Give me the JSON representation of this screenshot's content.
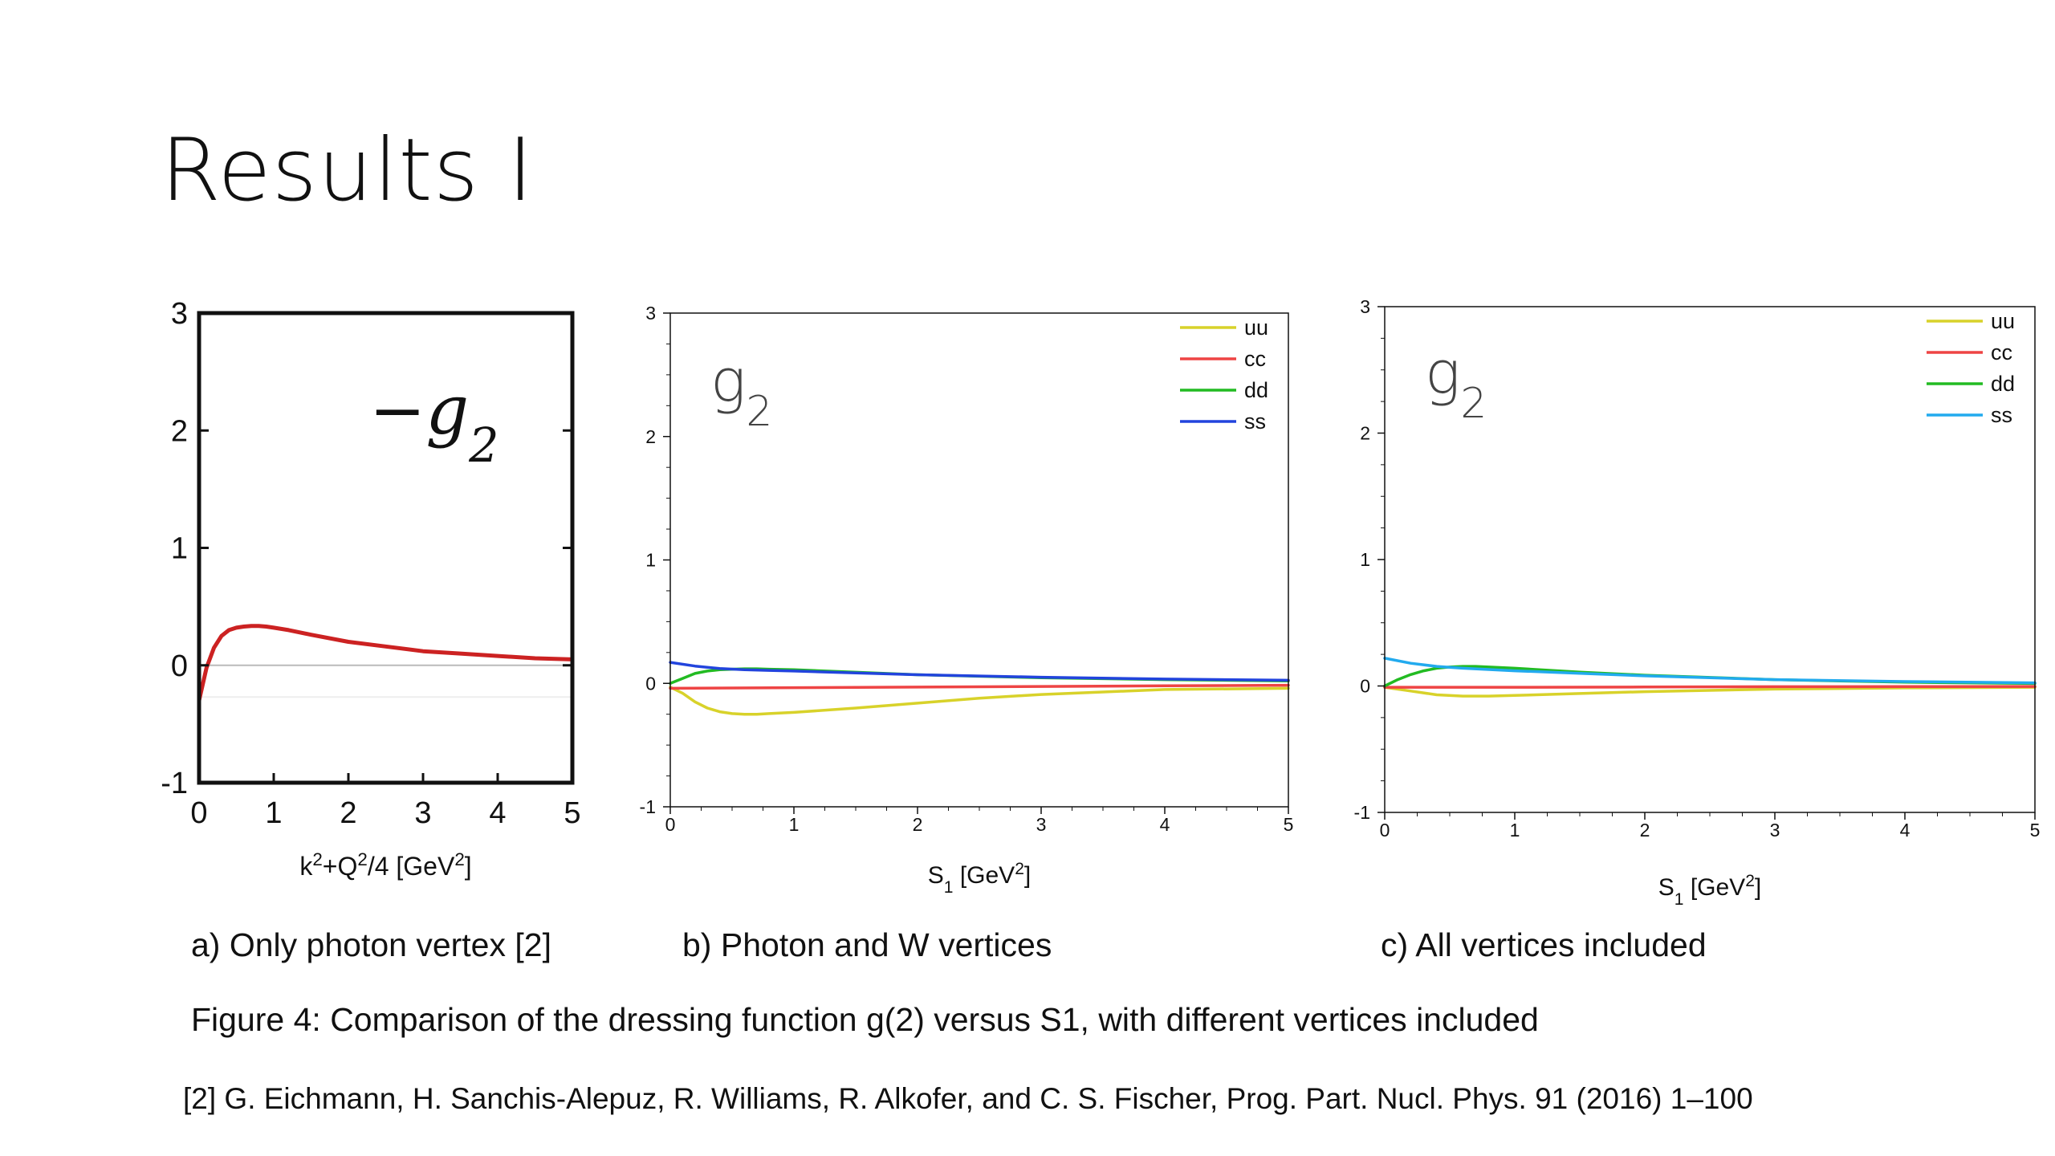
{
  "slide": {
    "title": "Results I",
    "captions": [
      "a) Only photon vertex [2]",
      "b) Photon and W vertices",
      "c) All vertices included"
    ],
    "figure_caption": "Figure 4: Comparison of the dressing function g(2) versus S1, with different vertices included",
    "reference": "[2] G. Eichmann, H. Sanchis-Alepuz, R. Williams, R. Alkofer, and C. S. Fischer, Prog. Part. Nucl. Phys. 91 (2016) 1–100"
  },
  "chart_data": [
    {
      "type": "line",
      "annotation": "−g₂",
      "xlabel": "k²+Q²/4 [GeV²]",
      "xlim": [
        0,
        5
      ],
      "ylim": [
        -1,
        3
      ],
      "xticks": [
        0,
        1,
        2,
        3,
        4,
        5
      ],
      "yticks": [
        -1,
        0,
        1,
        2,
        3
      ],
      "zero_line": true,
      "legend": null,
      "series": [
        {
          "color": "#cc2222",
          "x": [
            0,
            0.1,
            0.2,
            0.3,
            0.4,
            0.5,
            0.6,
            0.7,
            0.8,
            0.9,
            1.0,
            1.2,
            1.5,
            2.0,
            2.5,
            3.0,
            3.5,
            4.0,
            4.5,
            5.0
          ],
          "y": [
            -0.3,
            -0.02,
            0.15,
            0.25,
            0.3,
            0.32,
            0.33,
            0.335,
            0.335,
            0.33,
            0.32,
            0.3,
            0.26,
            0.2,
            0.16,
            0.12,
            0.1,
            0.08,
            0.06,
            0.05
          ]
        }
      ]
    },
    {
      "type": "line",
      "annotation": "g₂",
      "xlabel": "S₁ [GeV²]",
      "xlim": [
        0,
        5
      ],
      "ylim": [
        -1,
        3
      ],
      "xticks": [
        0,
        1,
        2,
        3,
        4,
        5
      ],
      "yticks": [
        -1,
        0,
        1,
        2,
        3
      ],
      "legend": "top-right",
      "series": [
        {
          "name": "uu",
          "color": "#d8d22a",
          "x": [
            0,
            0.1,
            0.2,
            0.3,
            0.4,
            0.5,
            0.6,
            0.7,
            0.8,
            1.0,
            1.5,
            2.0,
            2.5,
            3.0,
            3.5,
            4.0,
            5.0
          ],
          "y": [
            -0.03,
            -0.08,
            -0.15,
            -0.2,
            -0.23,
            -0.245,
            -0.25,
            -0.25,
            -0.245,
            -0.235,
            -0.2,
            -0.16,
            -0.12,
            -0.09,
            -0.07,
            -0.05,
            -0.04
          ]
        },
        {
          "name": "cc",
          "color": "#ee4444",
          "x": [
            0,
            1,
            2,
            3,
            4,
            5
          ],
          "y": [
            -0.04,
            -0.035,
            -0.03,
            -0.025,
            -0.02,
            -0.015
          ]
        },
        {
          "name": "dd",
          "color": "#22bb22",
          "x": [
            0,
            0.1,
            0.2,
            0.3,
            0.4,
            0.5,
            0.6,
            0.7,
            0.8,
            1.0,
            1.5,
            2.0,
            3.0,
            4.0,
            5.0
          ],
          "y": [
            0.0,
            0.04,
            0.08,
            0.1,
            0.11,
            0.115,
            0.118,
            0.118,
            0.115,
            0.11,
            0.09,
            0.07,
            0.045,
            0.03,
            0.02
          ]
        },
        {
          "name": "ss",
          "color": "#2244dd",
          "x": [
            0,
            0.2,
            0.4,
            0.6,
            0.8,
            1.0,
            1.5,
            2.0,
            3.0,
            4.0,
            5.0
          ],
          "y": [
            0.17,
            0.14,
            0.12,
            0.11,
            0.105,
            0.1,
            0.085,
            0.07,
            0.05,
            0.035,
            0.025
          ]
        }
      ]
    },
    {
      "type": "line",
      "annotation": "g₂",
      "xlabel": "S₁ [GeV²]",
      "xlim": [
        0,
        5
      ],
      "ylim": [
        -1,
        3
      ],
      "xticks": [
        0,
        1,
        2,
        3,
        4,
        5
      ],
      "yticks": [
        -1,
        0,
        1,
        2,
        3
      ],
      "legend": "top-right",
      "series": [
        {
          "name": "uu",
          "color": "#d8d22a",
          "x": [
            0,
            0.2,
            0.4,
            0.6,
            0.8,
            1.0,
            1.5,
            2.0,
            3.0,
            4.0,
            5.0
          ],
          "y": [
            -0.01,
            -0.04,
            -0.07,
            -0.08,
            -0.08,
            -0.075,
            -0.06,
            -0.045,
            -0.025,
            -0.015,
            -0.01
          ]
        },
        {
          "name": "cc",
          "color": "#ee4444",
          "x": [
            0,
            1,
            2,
            3,
            4,
            5
          ],
          "y": [
            -0.01,
            -0.01,
            -0.008,
            -0.006,
            -0.005,
            -0.004
          ]
        },
        {
          "name": "dd",
          "color": "#22bb22",
          "x": [
            0,
            0.1,
            0.2,
            0.3,
            0.4,
            0.5,
            0.6,
            0.7,
            0.8,
            1.0,
            1.5,
            2.0,
            3.0,
            4.0,
            5.0
          ],
          "y": [
            0.0,
            0.05,
            0.09,
            0.12,
            0.14,
            0.15,
            0.155,
            0.155,
            0.15,
            0.14,
            0.11,
            0.085,
            0.05,
            0.03,
            0.02
          ]
        },
        {
          "name": "ss",
          "color": "#22aaee",
          "x": [
            0,
            0.2,
            0.4,
            0.6,
            0.8,
            1.0,
            1.5,
            2.0,
            3.0,
            4.0,
            5.0
          ],
          "y": [
            0.22,
            0.18,
            0.155,
            0.14,
            0.13,
            0.12,
            0.1,
            0.08,
            0.05,
            0.035,
            0.025
          ]
        }
      ]
    }
  ]
}
